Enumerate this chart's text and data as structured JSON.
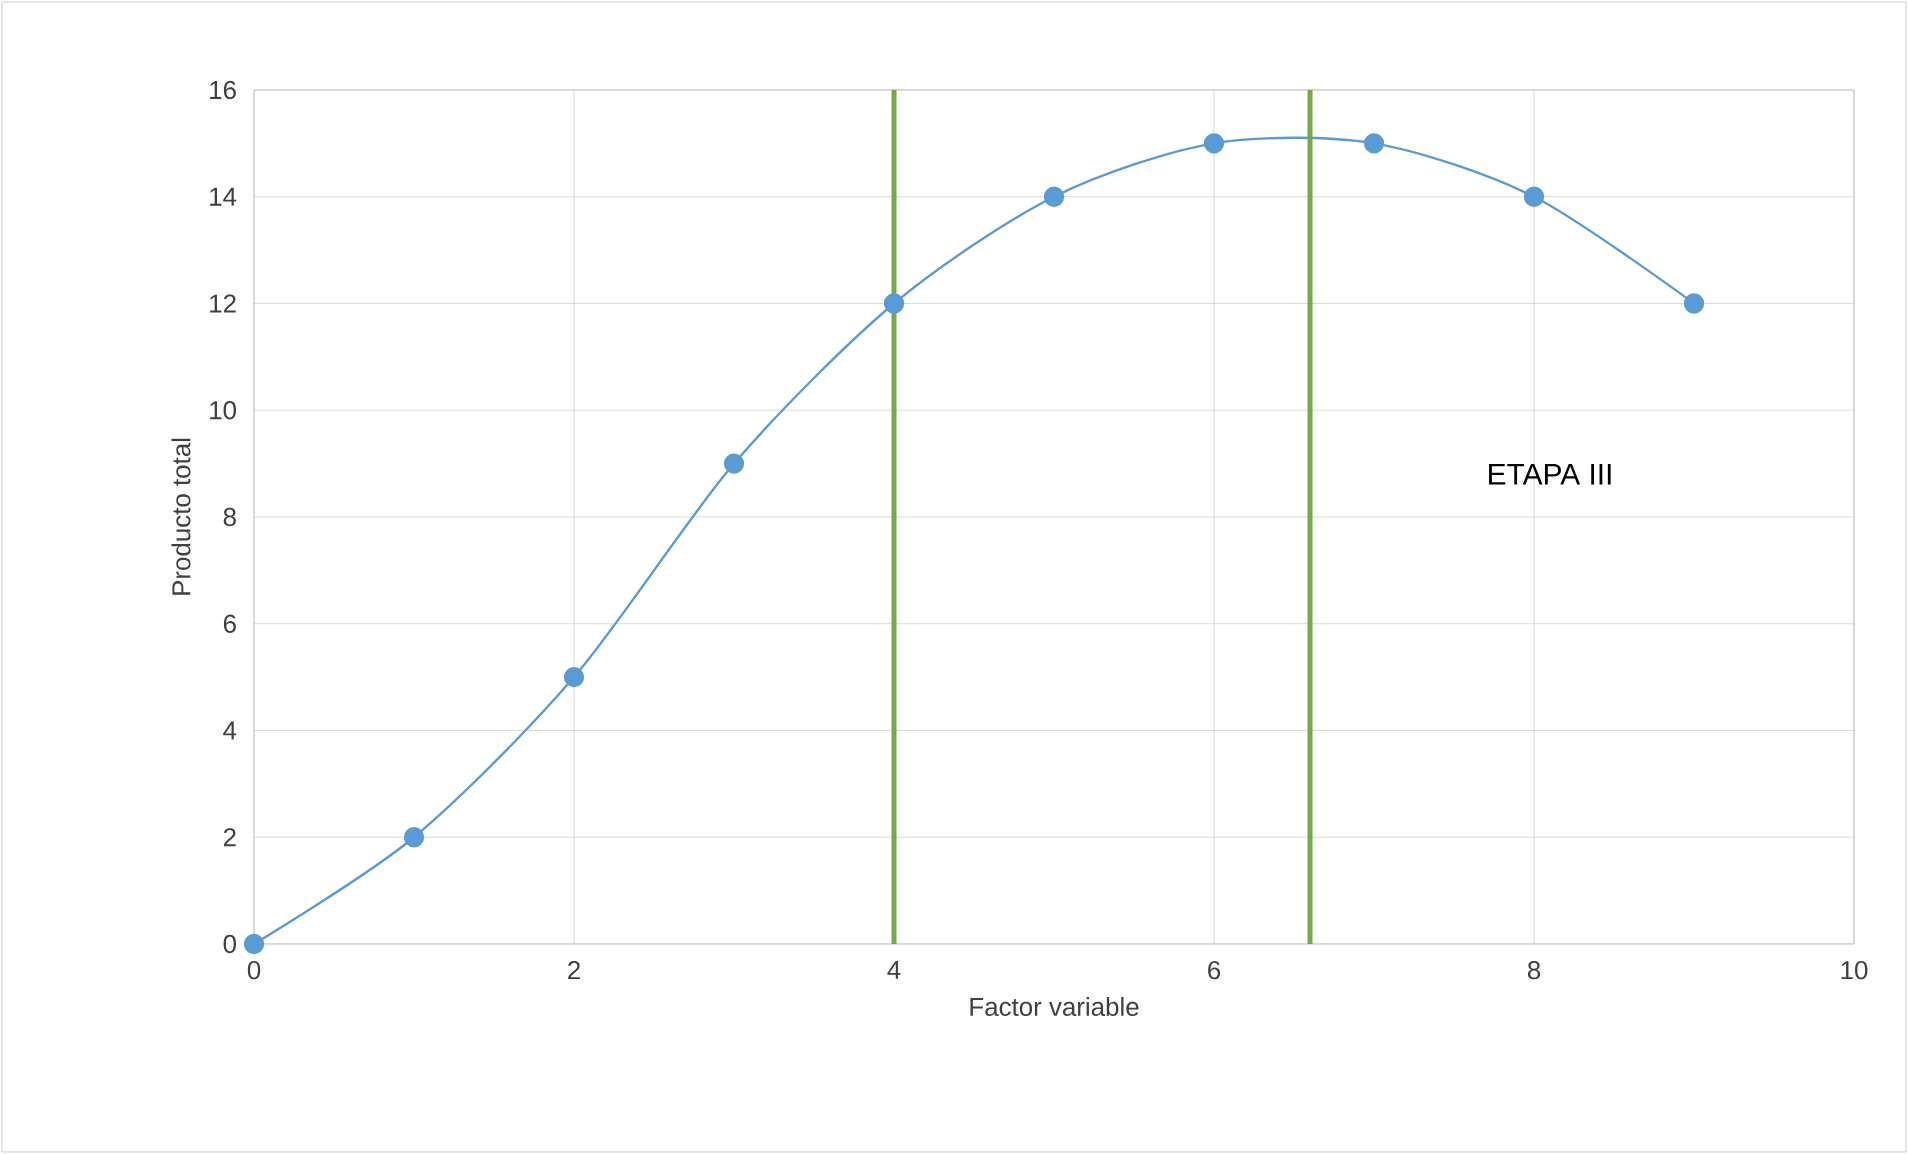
{
  "chart_data": {
    "type": "line",
    "xlabel": "Factor variable",
    "ylabel": "Producto total",
    "x": [
      0,
      1,
      2,
      3,
      4,
      5,
      6,
      7,
      8,
      9
    ],
    "series": [
      {
        "color": "#5b9bd5",
        "values": [
          0,
          2,
          5,
          9,
          12,
          14,
          15,
          15,
          14,
          12
        ]
      }
    ],
    "xlim": [
      0,
      10
    ],
    "xticks": [
      0,
      2,
      4,
      6,
      8,
      10
    ],
    "ylim": [
      0,
      16
    ],
    "yticks": [
      0,
      2,
      4,
      6,
      8,
      10,
      12,
      14,
      16
    ],
    "ref_lines": [
      {
        "axis": "x",
        "value": 4,
        "color": "#70ad47"
      },
      {
        "axis": "x",
        "value": 6.6,
        "color": "#70ad47"
      }
    ],
    "annotations": [
      "ETAPA III"
    ],
    "grid": true,
    "marker": "circle",
    "line_style": "solid"
  }
}
